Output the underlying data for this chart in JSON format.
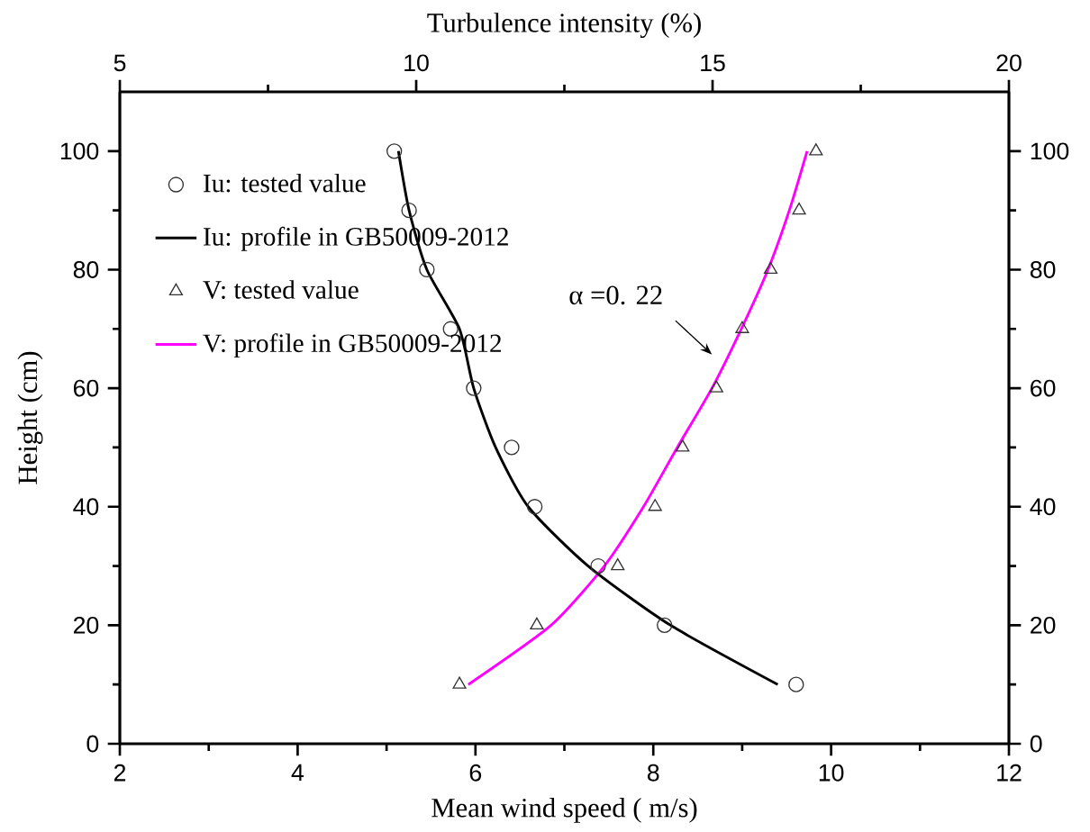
{
  "chart_data": {
    "type": "scatter",
    "xlabel": "Mean wind speed ( m/s)",
    "ylabel": "Height (cm)",
    "x2label": "Turbulence intensity (%)",
    "xlim": [
      2,
      12
    ],
    "xticks": [
      2,
      4,
      6,
      8,
      10,
      12
    ],
    "ylim": [
      0,
      110
    ],
    "yticks": [
      0,
      20,
      40,
      60,
      80,
      100
    ],
    "x2lim": [
      5,
      20
    ],
    "x2ticks": [
      5,
      10,
      15,
      20
    ],
    "y2lim": [
      0,
      110
    ],
    "y2ticks": [
      0,
      20,
      40,
      60,
      80,
      100
    ],
    "legend": "top left",
    "series": [
      {
        "name": "Iu: tested value",
        "axis": "x2",
        "marker": "circle",
        "color": "#333333",
        "x": [
          9.63,
          9.88,
          10.18,
          10.58,
          10.97,
          11.61,
          12.0,
          13.07,
          14.19,
          16.41
        ],
        "values": [
          100,
          90,
          80,
          70,
          60,
          50,
          40,
          30,
          20,
          10
        ]
      },
      {
        "name": "Iu: profile in GB50009-2012",
        "type": "line",
        "axis": "x2",
        "color": "#000000",
        "x": [
          9.7,
          9.88,
          10.18,
          10.73,
          10.97,
          11.34,
          11.89,
          12.9,
          14.29,
          16.1
        ],
        "values": [
          100,
          90,
          80,
          70,
          60,
          50,
          40,
          30,
          20,
          10
        ]
      },
      {
        "name": "V: tested value",
        "marker": "triangle",
        "color": "#333333",
        "x": [
          9.83,
          9.64,
          9.32,
          9.0,
          8.71,
          8.33,
          8.02,
          7.6,
          6.69,
          5.82
        ],
        "values": [
          100,
          90,
          80,
          70,
          60,
          50,
          40,
          30,
          20,
          10
        ]
      },
      {
        "name": "V: profile in GB50009-2012",
        "type": "line",
        "color": "#ff00ff",
        "x": [
          9.73,
          9.53,
          9.29,
          8.99,
          8.66,
          8.27,
          7.89,
          7.45,
          6.85,
          5.92
        ],
        "values": [
          100,
          90,
          80,
          70,
          60,
          50,
          40,
          30,
          20,
          10
        ]
      }
    ],
    "annotations": [
      "α =0. 22"
    ]
  }
}
